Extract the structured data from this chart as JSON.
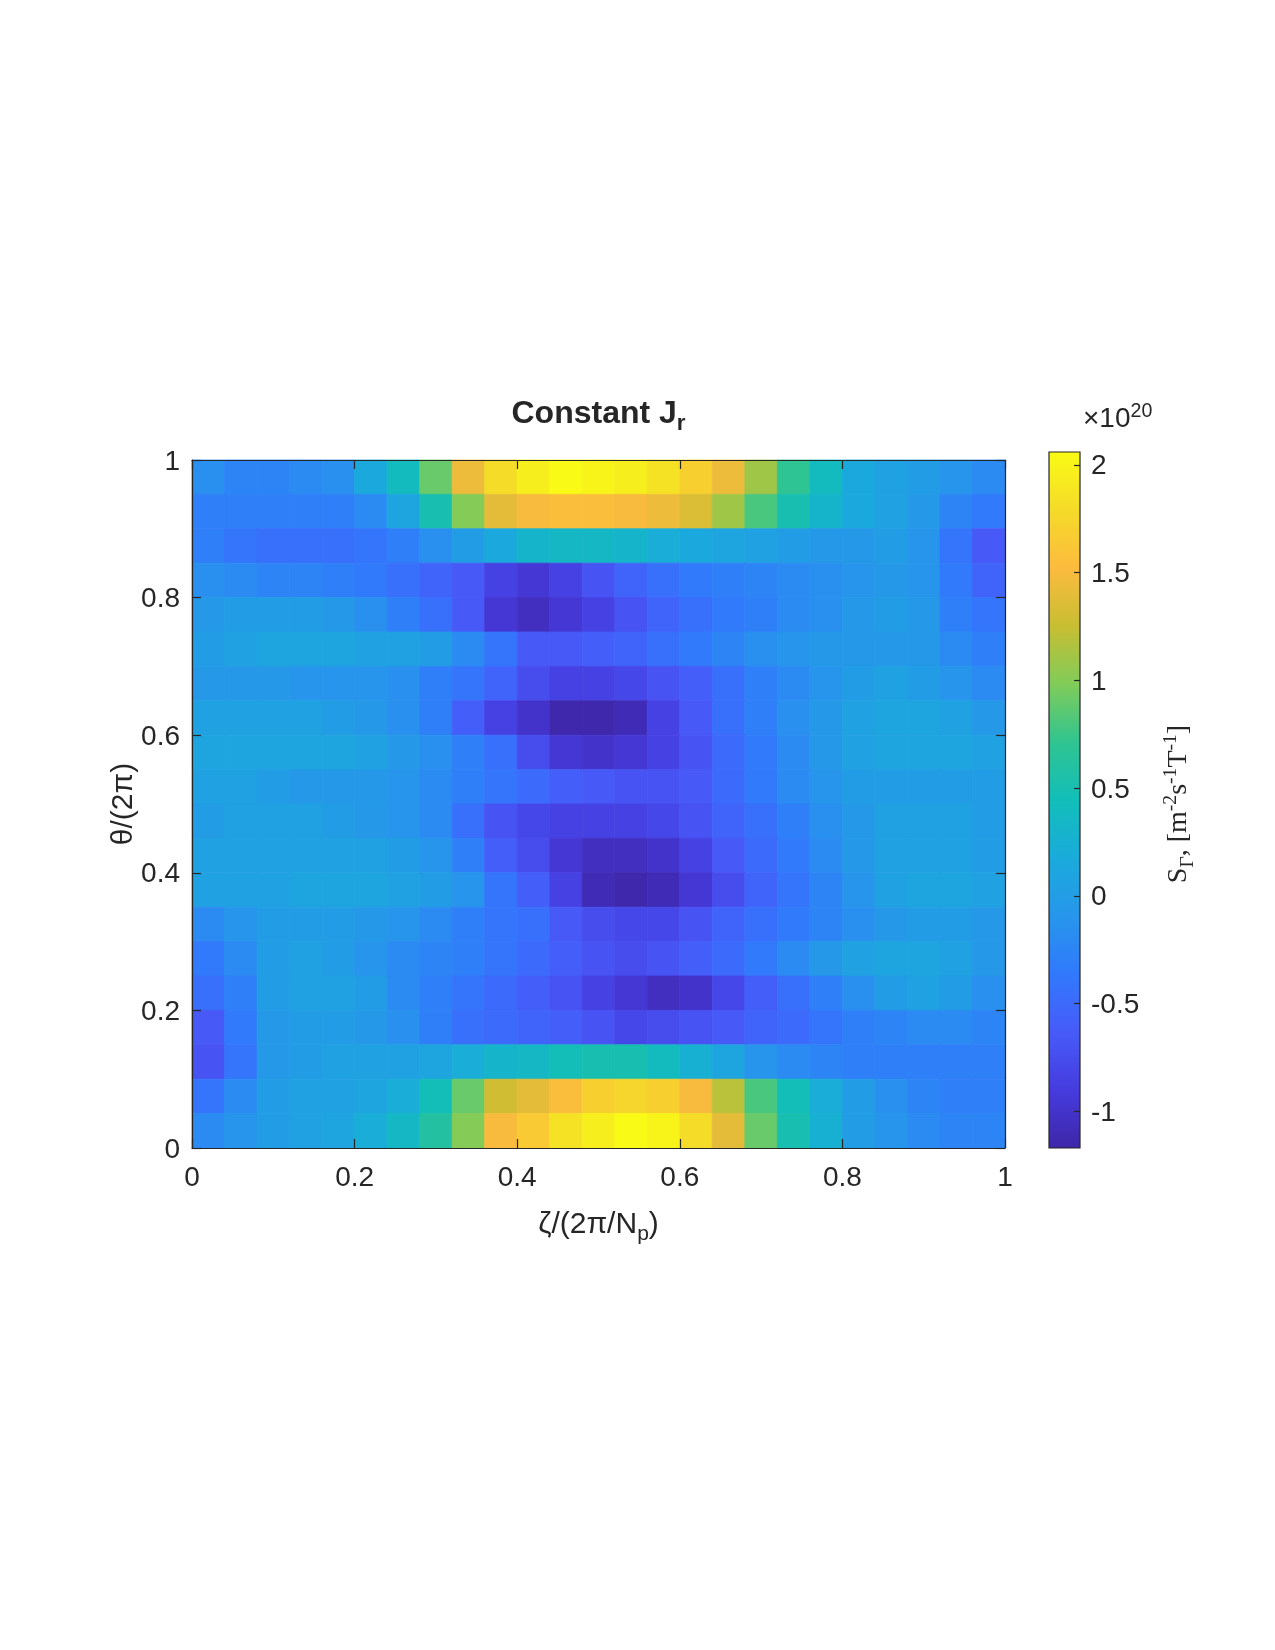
{
  "chart_data": {
    "type": "heatmap",
    "title": "Constant J$_{r}$",
    "xlabel": "ζ/(2π/N$_{p}$)",
    "ylabel": "θ/(2π)",
    "clabel": "S$_{Γ}$, [m$^{-2}$s$^{-1}$T$^{-1}$]",
    "annotations": [
      "×10$^{20}$"
    ],
    "x": [
      0.02,
      0.06,
      0.1,
      0.14,
      0.18,
      0.22,
      0.26,
      0.3,
      0.34,
      0.38,
      0.42,
      0.46,
      0.5,
      0.54,
      0.58,
      0.62,
      0.66,
      0.7,
      0.74,
      0.78,
      0.82,
      0.86,
      0.9,
      0.94,
      0.98
    ],
    "y": [
      0.975,
      0.925,
      0.875,
      0.825,
      0.775,
      0.725,
      0.675,
      0.625,
      0.575,
      0.525,
      0.475,
      0.425,
      0.375,
      0.325,
      0.275,
      0.225,
      0.175,
      0.125,
      0.075,
      0.025
    ],
    "xlim": [
      0,
      1
    ],
    "ylim": [
      0,
      1
    ],
    "xticks": [
      0,
      0.2,
      0.4,
      0.6,
      0.8,
      1
    ],
    "yticks": [
      0,
      0.2,
      0.4,
      0.6,
      0.8,
      1
    ],
    "clim": [
      -1.17,
      2.06
    ],
    "cticks": [
      -1,
      -0.5,
      0,
      0.5,
      1,
      1.5,
      2
    ],
    "cells": [
      [
        -0.15,
        -0.25,
        -0.25,
        -0.2,
        -0.15,
        0.15,
        0.4,
        0.9,
        1.45,
        1.8,
        1.95,
        2.05,
        2.0,
        1.95,
        1.85,
        1.7,
        1.45,
        1.1,
        0.7,
        0.4,
        0.15,
        0.05,
        0,
        -0.1,
        -0.2
      ],
      [
        -0.3,
        -0.3,
        -0.3,
        -0.3,
        -0.3,
        -0.2,
        0.1,
        0.5,
        1.0,
        1.4,
        1.5,
        1.55,
        1.55,
        1.5,
        1.45,
        1.35,
        1.1,
        0.8,
        0.5,
        0.3,
        0.15,
        0.05,
        -0.05,
        -0.25,
        -0.35
      ],
      [
        -0.3,
        -0.4,
        -0.45,
        -0.45,
        -0.45,
        -0.4,
        -0.3,
        -0.15,
        0,
        0.15,
        0.3,
        0.35,
        0.35,
        0.3,
        0.2,
        0.15,
        0.1,
        0.05,
        0,
        -0.05,
        -0.05,
        0,
        -0.1,
        -0.4,
        -0.65
      ],
      [
        -0.15,
        -0.2,
        -0.25,
        -0.25,
        -0.3,
        -0.35,
        -0.45,
        -0.55,
        -0.65,
        -0.85,
        -0.95,
        -0.85,
        -0.7,
        -0.55,
        -0.45,
        -0.35,
        -0.3,
        -0.25,
        -0.2,
        -0.15,
        -0.1,
        -0.05,
        -0.1,
        -0.35,
        -0.55
      ],
      [
        -0.05,
        0,
        0,
        0,
        -0.05,
        -0.15,
        -0.3,
        -0.45,
        -0.65,
        -0.95,
        -1.05,
        -0.95,
        -0.85,
        -0.7,
        -0.55,
        -0.45,
        -0.35,
        -0.3,
        -0.2,
        -0.15,
        -0.05,
        0,
        -0.05,
        -0.3,
        -0.4
      ],
      [
        0,
        0.05,
        0.1,
        0.1,
        0.1,
        0.05,
        0.05,
        0,
        -0.2,
        -0.4,
        -0.65,
        -0.65,
        -0.6,
        -0.55,
        -0.45,
        -0.35,
        -0.25,
        -0.15,
        -0.1,
        -0.05,
        -0.05,
        -0.05,
        -0.05,
        -0.2,
        -0.3
      ],
      [
        -0.05,
        -0.05,
        -0.05,
        -0.1,
        -0.1,
        -0.1,
        -0.15,
        -0.3,
        -0.4,
        -0.55,
        -0.75,
        -0.85,
        -0.85,
        -0.8,
        -0.7,
        -0.6,
        -0.45,
        -0.3,
        -0.2,
        -0.1,
        0,
        0.05,
        0,
        -0.1,
        -0.2
      ],
      [
        0.05,
        0.05,
        0.05,
        0.05,
        0,
        -0.05,
        -0.15,
        -0.3,
        -0.6,
        -0.85,
        -1.0,
        -1.15,
        -1.15,
        -1.1,
        -0.85,
        -0.65,
        -0.45,
        -0.3,
        -0.15,
        -0.05,
        0.05,
        0.1,
        0.1,
        0.05,
        -0.05
      ],
      [
        0.1,
        0.1,
        0.1,
        0.1,
        0.1,
        0.05,
        -0.05,
        -0.15,
        -0.3,
        -0.45,
        -0.75,
        -0.95,
        -1.0,
        -0.95,
        -0.85,
        -0.7,
        -0.5,
        -0.35,
        -0.2,
        -0.05,
        0.05,
        0.1,
        0.1,
        0.1,
        0.05
      ],
      [
        0.05,
        0.05,
        0,
        -0.05,
        -0.05,
        -0.05,
        -0.1,
        -0.2,
        -0.3,
        -0.4,
        -0.5,
        -0.6,
        -0.65,
        -0.7,
        -0.7,
        -0.65,
        -0.5,
        -0.35,
        -0.2,
        -0.1,
        0,
        0,
        0,
        0,
        0
      ],
      [
        0,
        0.05,
        0.05,
        0.05,
        0,
        -0.05,
        -0.1,
        -0.2,
        -0.45,
        -0.7,
        -0.8,
        -0.85,
        -0.85,
        -0.85,
        -0.8,
        -0.7,
        -0.55,
        -0.45,
        -0.3,
        -0.15,
        -0.05,
        0.05,
        0.05,
        0.05,
        0
      ],
      [
        0.05,
        0.05,
        0.05,
        0.05,
        0.05,
        0.05,
        0,
        -0.1,
        -0.3,
        -0.6,
        -0.75,
        -0.95,
        -1.05,
        -1.05,
        -1.0,
        -0.85,
        -0.65,
        -0.5,
        -0.35,
        -0.2,
        -0.05,
        0.05,
        0.05,
        0.05,
        0
      ],
      [
        0.05,
        0.05,
        0.05,
        0.1,
        0.1,
        0.1,
        0.05,
        0,
        -0.1,
        -0.4,
        -0.6,
        -0.85,
        -1.1,
        -1.15,
        -1.1,
        -0.95,
        -0.75,
        -0.55,
        -0.4,
        -0.25,
        -0.1,
        0.05,
        0.1,
        0.1,
        0.05
      ],
      [
        -0.2,
        -0.1,
        0,
        0,
        0,
        -0.05,
        -0.1,
        -0.2,
        -0.3,
        -0.4,
        -0.45,
        -0.65,
        -0.75,
        -0.8,
        -0.8,
        -0.7,
        -0.55,
        -0.45,
        -0.35,
        -0.25,
        -0.15,
        -0.05,
        0,
        0,
        -0.05
      ],
      [
        -0.35,
        -0.2,
        0,
        0.05,
        0,
        -0.1,
        -0.2,
        -0.25,
        -0.3,
        -0.4,
        -0.5,
        -0.6,
        -0.7,
        -0.75,
        -0.7,
        -0.6,
        -0.5,
        -0.35,
        -0.2,
        -0.05,
        0.05,
        0.1,
        0.1,
        0.05,
        -0.05
      ],
      [
        -0.45,
        -0.3,
        0,
        0.05,
        0.05,
        0,
        -0.2,
        -0.3,
        -0.4,
        -0.5,
        -0.6,
        -0.7,
        -0.85,
        -0.95,
        -1.05,
        -1.0,
        -0.8,
        -0.6,
        -0.45,
        -0.3,
        -0.15,
        0,
        0.05,
        0,
        -0.15
      ],
      [
        -0.65,
        -0.35,
        -0.05,
        0,
        0,
        -0.05,
        -0.15,
        -0.3,
        -0.45,
        -0.5,
        -0.55,
        -0.6,
        -0.7,
        -0.8,
        -0.75,
        -0.7,
        -0.65,
        -0.55,
        -0.5,
        -0.4,
        -0.3,
        -0.25,
        -0.2,
        -0.2,
        -0.25
      ],
      [
        -0.7,
        -0.4,
        -0.05,
        0,
        0.05,
        0.05,
        0.05,
        0.1,
        0.2,
        0.3,
        0.35,
        0.45,
        0.5,
        0.5,
        0.4,
        0.25,
        0.1,
        -0.1,
        -0.2,
        -0.25,
        -0.3,
        -0.3,
        -0.3,
        -0.3,
        -0.3
      ],
      [
        -0.4,
        -0.2,
        0,
        0.05,
        0.05,
        0.1,
        0.2,
        0.45,
        0.9,
        1.3,
        1.4,
        1.55,
        1.7,
        1.75,
        1.7,
        1.5,
        1.2,
        0.8,
        0.45,
        0.2,
        0,
        -0.15,
        -0.25,
        -0.3,
        -0.3
      ],
      [
        -0.2,
        -0.1,
        0,
        0.05,
        0.1,
        0.2,
        0.35,
        0.6,
        1.0,
        1.5,
        1.65,
        1.85,
        1.95,
        2.05,
        2.0,
        1.8,
        1.4,
        0.9,
        0.5,
        0.25,
        0,
        -0.1,
        -0.2,
        -0.25,
        -0.25
      ]
    ]
  }
}
